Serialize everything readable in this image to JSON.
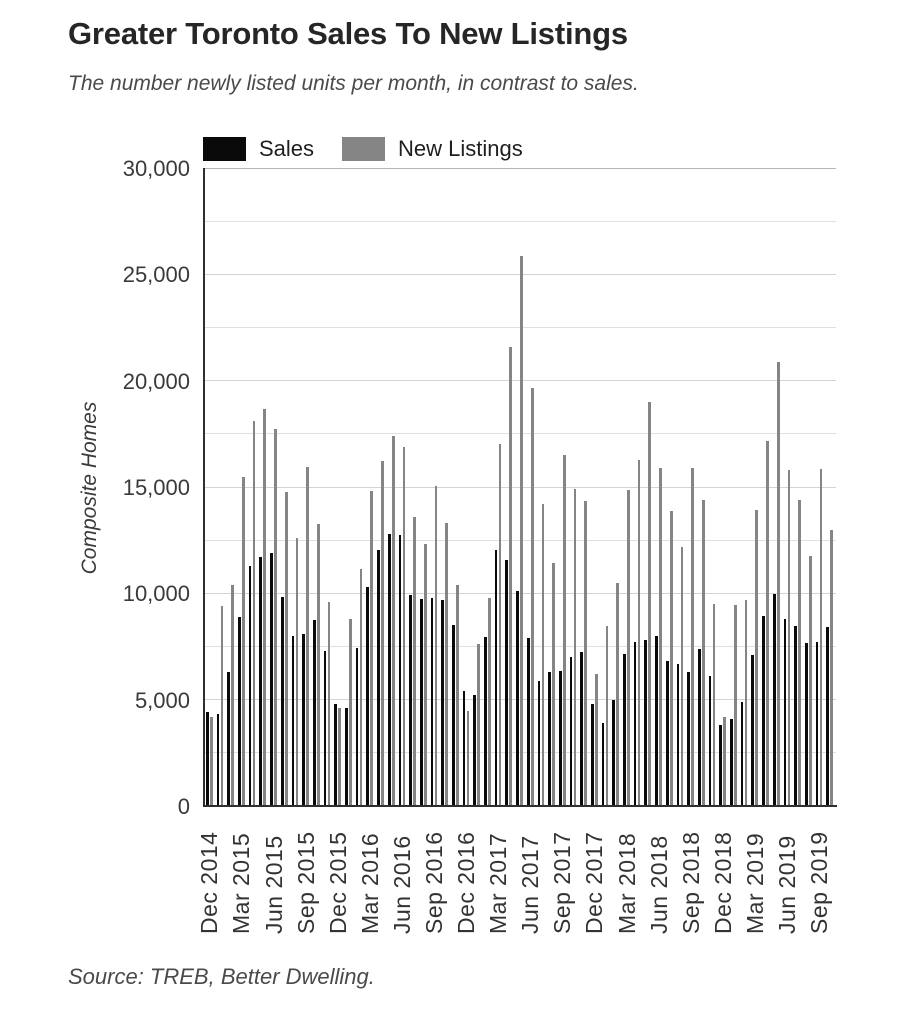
{
  "title": "Greater Toronto Sales To New Listings",
  "subtitle": "The number newly listed units per month, in contrast to sales.",
  "source": "Source: TREB, Better Dwelling.",
  "legend": [
    {
      "label": "Sales",
      "color": "#0a0a0a"
    },
    {
      "label": "New Listings",
      "color": "#858585"
    }
  ],
  "colors": {
    "sales_bar": "#0a0a0a",
    "new_listings_bar": "#858585",
    "grid_major": "#d3d3d3",
    "grid_minor": "#e0e0e0",
    "grid_top": "#b5b5b5",
    "axis": "#2f2f2f",
    "title_text": "#262626",
    "muted_text": "#4a4a4a"
  },
  "chart_data": {
    "type": "bar",
    "title": "Greater Toronto Sales To New Listings",
    "subtitle": "The number newly listed units per month, in contrast to sales.",
    "ylabel": "Composite Homes",
    "xlabel": "",
    "ylim": [
      0,
      30000
    ],
    "y_major_ticks": [
      0,
      5000,
      10000,
      15000,
      20000,
      25000,
      30000
    ],
    "minor_grid_interval": 2500,
    "grid": true,
    "legend_position": "top",
    "x_label_every": 3,
    "x_tick_labels": [
      "Dec 2014",
      "Mar 2015",
      "Jun 2015",
      "Sep 2015",
      "Dec 2015",
      "Mar 2016",
      "Jun 2016",
      "Sep 2016",
      "Dec 2016",
      "Mar 2017",
      "Jun 2017",
      "Sep 2017",
      "Dec 2017",
      "Mar 2018",
      "Jun 2018",
      "Sep 2018",
      "Dec 2018",
      "Mar 2019",
      "Jun 2019",
      "Sep 2019"
    ],
    "categories": [
      "Dec 2014",
      "Jan 2015",
      "Feb 2015",
      "Mar 2015",
      "Apr 2015",
      "May 2015",
      "Jun 2015",
      "Jul 2015",
      "Aug 2015",
      "Sep 2015",
      "Oct 2015",
      "Nov 2015",
      "Dec 2015",
      "Jan 2016",
      "Feb 2016",
      "Mar 2016",
      "Apr 2016",
      "May 2016",
      "Jun 2016",
      "Jul 2016",
      "Aug 2016",
      "Sep 2016",
      "Oct 2016",
      "Nov 2016",
      "Dec 2016",
      "Jan 2017",
      "Feb 2017",
      "Mar 2017",
      "Apr 2017",
      "May 2017",
      "Jun 2017",
      "Jul 2017",
      "Aug 2017",
      "Sep 2017",
      "Oct 2017",
      "Nov 2017",
      "Dec 2017",
      "Jan 2018",
      "Feb 2018",
      "Mar 2018",
      "Apr 2018",
      "May 2018",
      "Jun 2018",
      "Jul 2018",
      "Aug 2018",
      "Sep 2018",
      "Oct 2018",
      "Nov 2018",
      "Dec 2018",
      "Jan 2019",
      "Feb 2019",
      "Mar 2019",
      "Apr 2019",
      "May 2019",
      "Jun 2019",
      "Jul 2019",
      "Aug 2019",
      "Sep 2019",
      "Oct 2019"
    ],
    "series": [
      {
        "name": "Sales",
        "color": "#0a0a0a",
        "values": [
          4400,
          4350,
          6300,
          8900,
          11300,
          11700,
          11900,
          9850,
          8000,
          8100,
          8750,
          7300,
          4800,
          4600,
          7450,
          10300,
          12050,
          12800,
          12750,
          9900,
          9750,
          9800,
          9700,
          8500,
          5400,
          5200,
          7950,
          12050,
          11550,
          10100,
          7900,
          5900,
          6300,
          6350,
          7000,
          7250,
          4800,
          3900,
          5000,
          7150,
          7700,
          7800,
          8000,
          6800,
          6700,
          6300,
          7400,
          6100,
          3800,
          4100,
          4900,
          7100,
          8950,
          9950,
          8800,
          8450,
          7650,
          7700,
          8400
        ]
      },
      {
        "name": "New Listings",
        "color": "#858585",
        "values": [
          4200,
          9400,
          10400,
          15450,
          18100,
          18650,
          17750,
          14750,
          12600,
          15950,
          13250,
          9600,
          4600,
          8800,
          11150,
          14800,
          16200,
          17400,
          16900,
          13600,
          12300,
          15050,
          13300,
          10400,
          4450,
          7600,
          9800,
          17000,
          21600,
          25850,
          19650,
          14200,
          11450,
          16500,
          14900,
          14350,
          6200,
          8450,
          10500,
          14850,
          16250,
          19000,
          15900,
          13850,
          12200,
          15900,
          14400,
          9500,
          4200,
          9450,
          9700,
          13900,
          17150,
          20900,
          15800,
          14400,
          11750,
          15850,
          13000
        ]
      }
    ]
  }
}
